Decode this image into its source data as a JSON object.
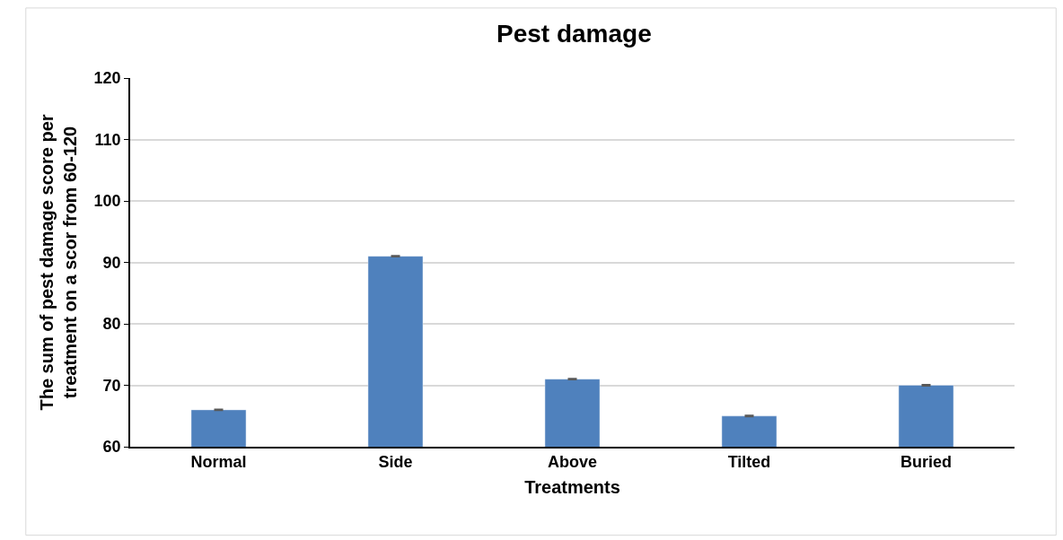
{
  "chart_data": {
    "type": "bar",
    "title": "Pest damage",
    "xlabel": "Treatments",
    "ylabel": "The sum of pest damage score per treatment on a scor from 60-120",
    "categories": [
      "Normal",
      "Side",
      "Above",
      "Tilted",
      "Buried"
    ],
    "values": [
      66,
      91,
      71,
      65,
      70
    ],
    "errors": [
      0.1,
      0.1,
      0.1,
      0.1,
      0.1
    ],
    "color": "#4f81bd",
    "ylim": [
      60,
      120
    ],
    "yticks": [
      60,
      70,
      80,
      90,
      100,
      110,
      120
    ],
    "grid": "y"
  }
}
